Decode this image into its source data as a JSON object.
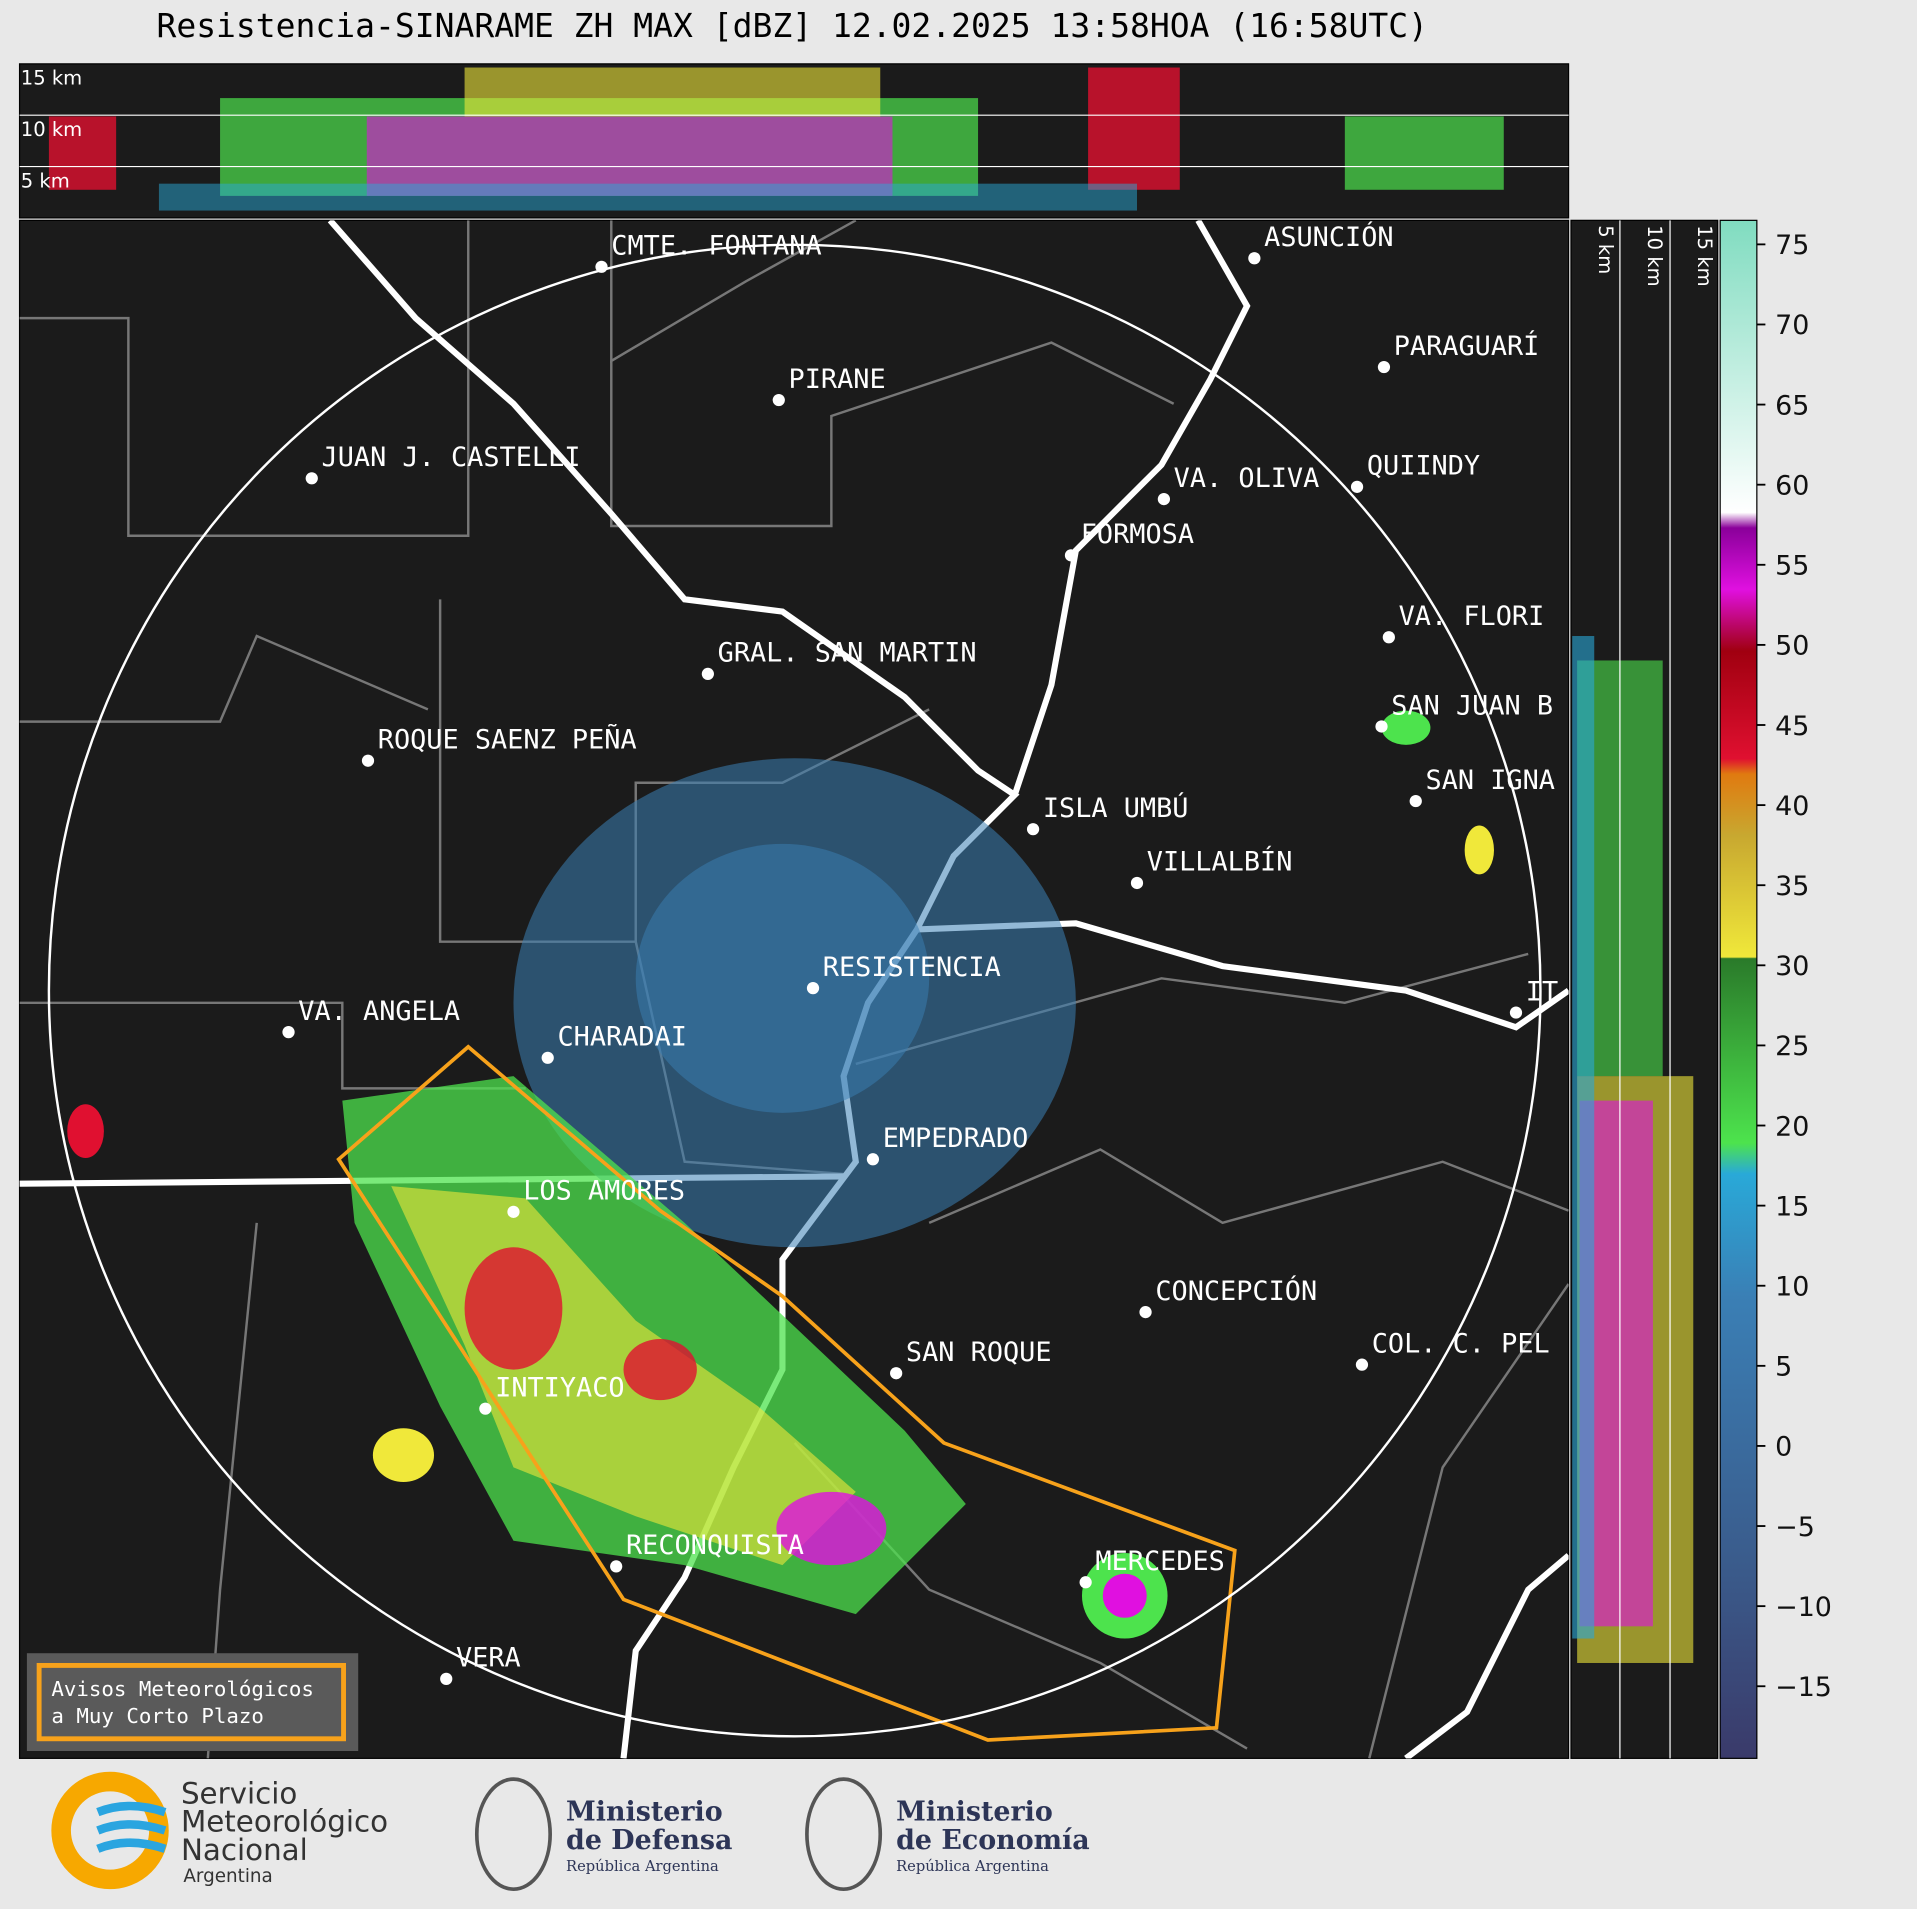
{
  "title": "Resistencia-SINARAME ZH MAX [dBZ] 12.02.2025 13:58HOA (16:58UTC)",
  "top_panel": {
    "height_labels": [
      "15 km",
      "10 km",
      "5 km"
    ]
  },
  "side_panel": {
    "height_labels": [
      "5 km",
      "10 km",
      "15 km"
    ]
  },
  "cities": [
    "CMTE. FONTANA",
    "PIRANE",
    "JUAN J. CASTELLI",
    "ASUNCIÓN",
    "PARAGUARÍ",
    "VA. OLIVA",
    "QUIINDY",
    "FORMOSA",
    "VA. FLORI",
    "GRAL. SAN MARTIN",
    "SAN JUAN B",
    "ROQUE SAENZ PEÑA",
    "SAN IGNA",
    "ISLA UMBÚ",
    "VILLALBÍN",
    "RESISTENCIA",
    "VA. ANGELA",
    "CHARADAI",
    "IT",
    "EMPEDRADO",
    "LOS AMORES",
    "CONCEPCIÓN",
    "SAN ROQUE",
    "COL. C. PEL",
    "INTIYACO",
    "RECONQUISTA",
    "MERCEDES",
    "VERA"
  ],
  "colorbar": {
    "range": [
      -19.5,
      76.5
    ],
    "ticks": [
      75,
      70,
      65,
      60,
      55,
      50,
      45,
      40,
      35,
      30,
      25,
      20,
      15,
      10,
      5,
      0,
      {
        "value": -5,
        "label": "−5"
      },
      {
        "value": -10,
        "label": "−10"
      },
      {
        "value": -15,
        "label": "−15"
      }
    ]
  },
  "warning_box": {
    "lines": [
      "Avisos Meteorológicos",
      "a Muy Corto Plazo"
    ]
  },
  "logos": {
    "smn": [
      "Servicio",
      "Meteorológico",
      "Nacional",
      "Argentina"
    ],
    "defensa": [
      "Ministerio",
      "de Defensa",
      "República Argentina"
    ],
    "economia": [
      "Ministerio",
      "de Economía",
      "República Argentina"
    ]
  }
}
